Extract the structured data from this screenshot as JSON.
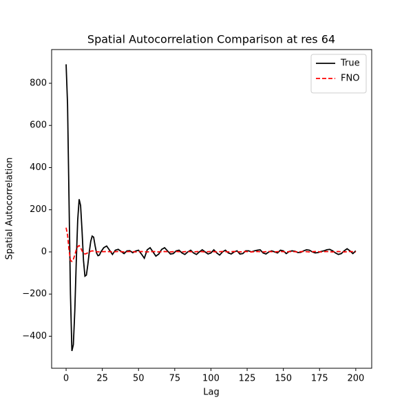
{
  "chart_data": {
    "type": "line",
    "title": "Spatial Autocorrelation Comparison at res 64",
    "x_label": "Lag",
    "y_label": "Spatial Autocorrelation",
    "x": [
      0,
      1,
      2,
      3,
      4,
      5,
      6,
      7,
      8,
      9,
      10,
      11,
      12,
      13,
      14,
      15,
      16,
      17,
      18,
      19,
      20,
      21,
      22,
      23,
      24,
      26,
      28,
      30,
      32,
      34,
      36,
      38,
      40,
      42,
      44,
      46,
      48,
      50,
      52,
      54,
      56,
      58,
      60,
      62,
      64,
      66,
      68,
      70,
      72,
      74,
      76,
      78,
      80,
      82,
      84,
      86,
      88,
      90,
      92,
      94,
      96,
      98,
      100,
      102,
      104,
      106,
      108,
      110,
      112,
      114,
      116,
      118,
      120,
      122,
      124,
      126,
      128,
      130,
      132,
      134,
      136,
      138,
      140,
      142,
      144,
      146,
      148,
      150,
      152,
      154,
      156,
      158,
      160,
      162,
      164,
      166,
      168,
      170,
      172,
      174,
      176,
      178,
      180,
      182,
      184,
      186,
      188,
      190,
      192,
      194,
      196,
      198,
      200
    ],
    "series": [
      {
        "name": "True",
        "color": "#000000",
        "linestyle": "solid",
        "values": [
          890,
          700,
          250,
          -200,
          -470,
          -440,
          -280,
          -50,
          150,
          250,
          220,
          100,
          -40,
          -115,
          -110,
          -60,
          0,
          50,
          75,
          70,
          30,
          -5,
          -18,
          -15,
          0,
          20,
          28,
          8,
          -12,
          8,
          12,
          2,
          -8,
          5,
          6,
          -4,
          4,
          8,
          -10,
          -30,
          10,
          20,
          0,
          -20,
          -10,
          12,
          20,
          5,
          -10,
          -8,
          5,
          8,
          -5,
          -12,
          0,
          8,
          -5,
          -12,
          0,
          10,
          0,
          -10,
          -5,
          10,
          -5,
          -15,
          0,
          8,
          -5,
          -10,
          0,
          5,
          -10,
          -8,
          5,
          5,
          0,
          5,
          8,
          10,
          -5,
          -10,
          0,
          5,
          0,
          -5,
          8,
          5,
          -8,
          2,
          5,
          3,
          -3,
          -2,
          5,
          10,
          8,
          0,
          -5,
          -3,
          2,
          5,
          10,
          12,
          5,
          -5,
          -12,
          -8,
          5,
          15,
          5,
          -8,
          5
        ]
      },
      {
        "name": "FNO",
        "color": "#ff0000",
        "linestyle": "dashed",
        "values": [
          115,
          80,
          10,
          -40,
          -45,
          -35,
          -15,
          10,
          25,
          30,
          20,
          5,
          -5,
          -10,
          -8,
          -4,
          0,
          3,
          5,
          4,
          2,
          1,
          0,
          1,
          2,
          1,
          2,
          1,
          0,
          1,
          2,
          1,
          0,
          1,
          2,
          1,
          0,
          1,
          2,
          1,
          0,
          1,
          2,
          1,
          0,
          1,
          2,
          1,
          0,
          1,
          2,
          1,
          0,
          1,
          2,
          1,
          0,
          1,
          2,
          1,
          0,
          1,
          2,
          1,
          0,
          1,
          2,
          1,
          0,
          1,
          2,
          1,
          0,
          1,
          2,
          1,
          0,
          1,
          2,
          1,
          0,
          1,
          2,
          1,
          0,
          1,
          2,
          1,
          0,
          1,
          2,
          1,
          0,
          1,
          2,
          1,
          0,
          1,
          2,
          1,
          0,
          1,
          2,
          1,
          0,
          1,
          2,
          1,
          0,
          1,
          2,
          1,
          0
        ]
      }
    ],
    "xlim": [
      -10,
      211
    ],
    "ylim": [
      -552,
      960
    ],
    "xticks": [
      0,
      25,
      50,
      75,
      100,
      125,
      150,
      175,
      200
    ],
    "yticks": [
      {
        "value": -400,
        "label": "−400"
      },
      {
        "value": -200,
        "label": "−200"
      },
      0,
      200,
      400,
      600,
      800
    ],
    "legend": "upper right"
  }
}
